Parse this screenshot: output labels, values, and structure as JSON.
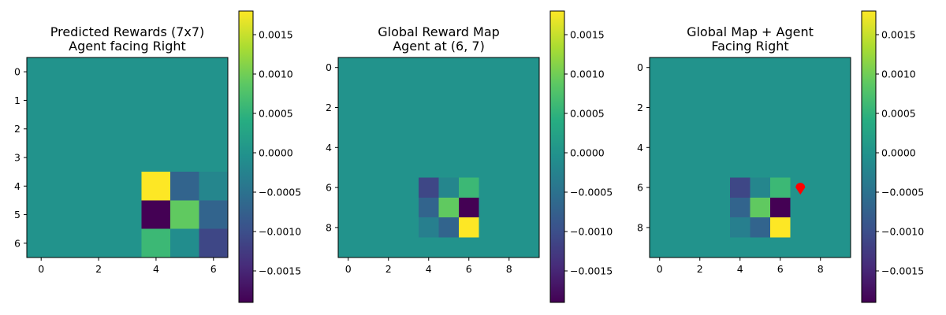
{
  "chart_data": [
    {
      "type": "heatmap",
      "title": [
        "Predicted Rewards (7x7)",
        "Agent facing Right"
      ],
      "colormap": "viridis",
      "vmin": -0.0019,
      "vmax": 0.0018,
      "x_ticks": [
        "0",
        "2",
        "4",
        "6"
      ],
      "y_ticks": [
        "0",
        "1",
        "2",
        "3",
        "4",
        "5",
        "6"
      ],
      "colorbar_ticks": [
        "0.0015",
        "0.0010",
        "0.0005",
        "0.0000",
        "−0.0005",
        "−0.0010",
        "−0.0015"
      ],
      "grid": [
        [
          0,
          0,
          0,
          0,
          0,
          0,
          0
        ],
        [
          0,
          0,
          0,
          0,
          0,
          0,
          0
        ],
        [
          0,
          0,
          0,
          0,
          0,
          0,
          0
        ],
        [
          0,
          0,
          0,
          0,
          0,
          0,
          0
        ],
        [
          0,
          0,
          0,
          0,
          0.0018,
          -0.0007,
          -0.0002
        ],
        [
          0,
          0,
          0,
          0,
          -0.0019,
          0.0009,
          -0.0007
        ],
        [
          0,
          0,
          0,
          0,
          0.0006,
          -0.0001,
          -0.0011
        ]
      ]
    },
    {
      "type": "heatmap",
      "title": [
        "Global Reward Map",
        "Agent at (6, 7)"
      ],
      "colormap": "viridis",
      "vmin": -0.0019,
      "vmax": 0.0018,
      "x_ticks": [
        "0",
        "2",
        "4",
        "6",
        "8"
      ],
      "y_ticks": [
        "0",
        "2",
        "4",
        "6",
        "8"
      ],
      "colorbar_ticks": [
        "0.0015",
        "0.0010",
        "0.0005",
        "0.0000",
        "−0.0005",
        "−0.0010",
        "−0.0015"
      ],
      "grid": [
        [
          0,
          0,
          0,
          0,
          0,
          0,
          0,
          0,
          0,
          0
        ],
        [
          0,
          0,
          0,
          0,
          0,
          0,
          0,
          0,
          0,
          0
        ],
        [
          0,
          0,
          0,
          0,
          0,
          0,
          0,
          0,
          0,
          0
        ],
        [
          0,
          0,
          0,
          0,
          0,
          0,
          0,
          0,
          0,
          0
        ],
        [
          0,
          0,
          0,
          0,
          0,
          0,
          0,
          0,
          0,
          0
        ],
        [
          0,
          0,
          0,
          0,
          0,
          0,
          0,
          0,
          0,
          0
        ],
        [
          0,
          0,
          0,
          0,
          -0.0011,
          -0.0002,
          0.0006,
          0,
          0,
          0
        ],
        [
          0,
          0,
          0,
          0,
          -0.0007,
          0.0009,
          -0.0019,
          0,
          0,
          0
        ],
        [
          0,
          0,
          0,
          0,
          -0.0003,
          -0.0007,
          0.0018,
          0,
          0,
          0
        ],
        [
          0,
          0,
          0,
          0,
          0,
          0,
          0,
          0,
          0,
          0
        ]
      ]
    },
    {
      "type": "heatmap",
      "title": [
        "Global Map + Agent",
        "Facing Right"
      ],
      "colormap": "viridis",
      "vmin": -0.0019,
      "vmax": 0.0018,
      "x_ticks": [
        "0",
        "2",
        "4",
        "6",
        "8"
      ],
      "y_ticks": [
        "0",
        "2",
        "4",
        "6",
        "8"
      ],
      "colorbar_ticks": [
        "0.0015",
        "0.0010",
        "0.0005",
        "0.0000",
        "−0.0005",
        "−0.0010",
        "−0.0015"
      ],
      "grid": [
        [
          0,
          0,
          0,
          0,
          0,
          0,
          0,
          0,
          0,
          0
        ],
        [
          0,
          0,
          0,
          0,
          0,
          0,
          0,
          0,
          0,
          0
        ],
        [
          0,
          0,
          0,
          0,
          0,
          0,
          0,
          0,
          0,
          0
        ],
        [
          0,
          0,
          0,
          0,
          0,
          0,
          0,
          0,
          0,
          0
        ],
        [
          0,
          0,
          0,
          0,
          0,
          0,
          0,
          0,
          0,
          0
        ],
        [
          0,
          0,
          0,
          0,
          0,
          0,
          0,
          0,
          0,
          0
        ],
        [
          0,
          0,
          0,
          0,
          -0.0011,
          -0.0002,
          0.0006,
          0,
          0,
          0
        ],
        [
          0,
          0,
          0,
          0,
          -0.0007,
          0.0009,
          -0.0019,
          0,
          0,
          0
        ],
        [
          0,
          0,
          0,
          0,
          -0.0003,
          -0.0007,
          0.0018,
          0,
          0,
          0
        ],
        [
          0,
          0,
          0,
          0,
          0,
          0,
          0,
          0,
          0,
          0
        ]
      ],
      "agent_marker": {
        "x": 7,
        "y": 6,
        "color": "#ff0000",
        "shape": "triangle-down"
      }
    }
  ]
}
